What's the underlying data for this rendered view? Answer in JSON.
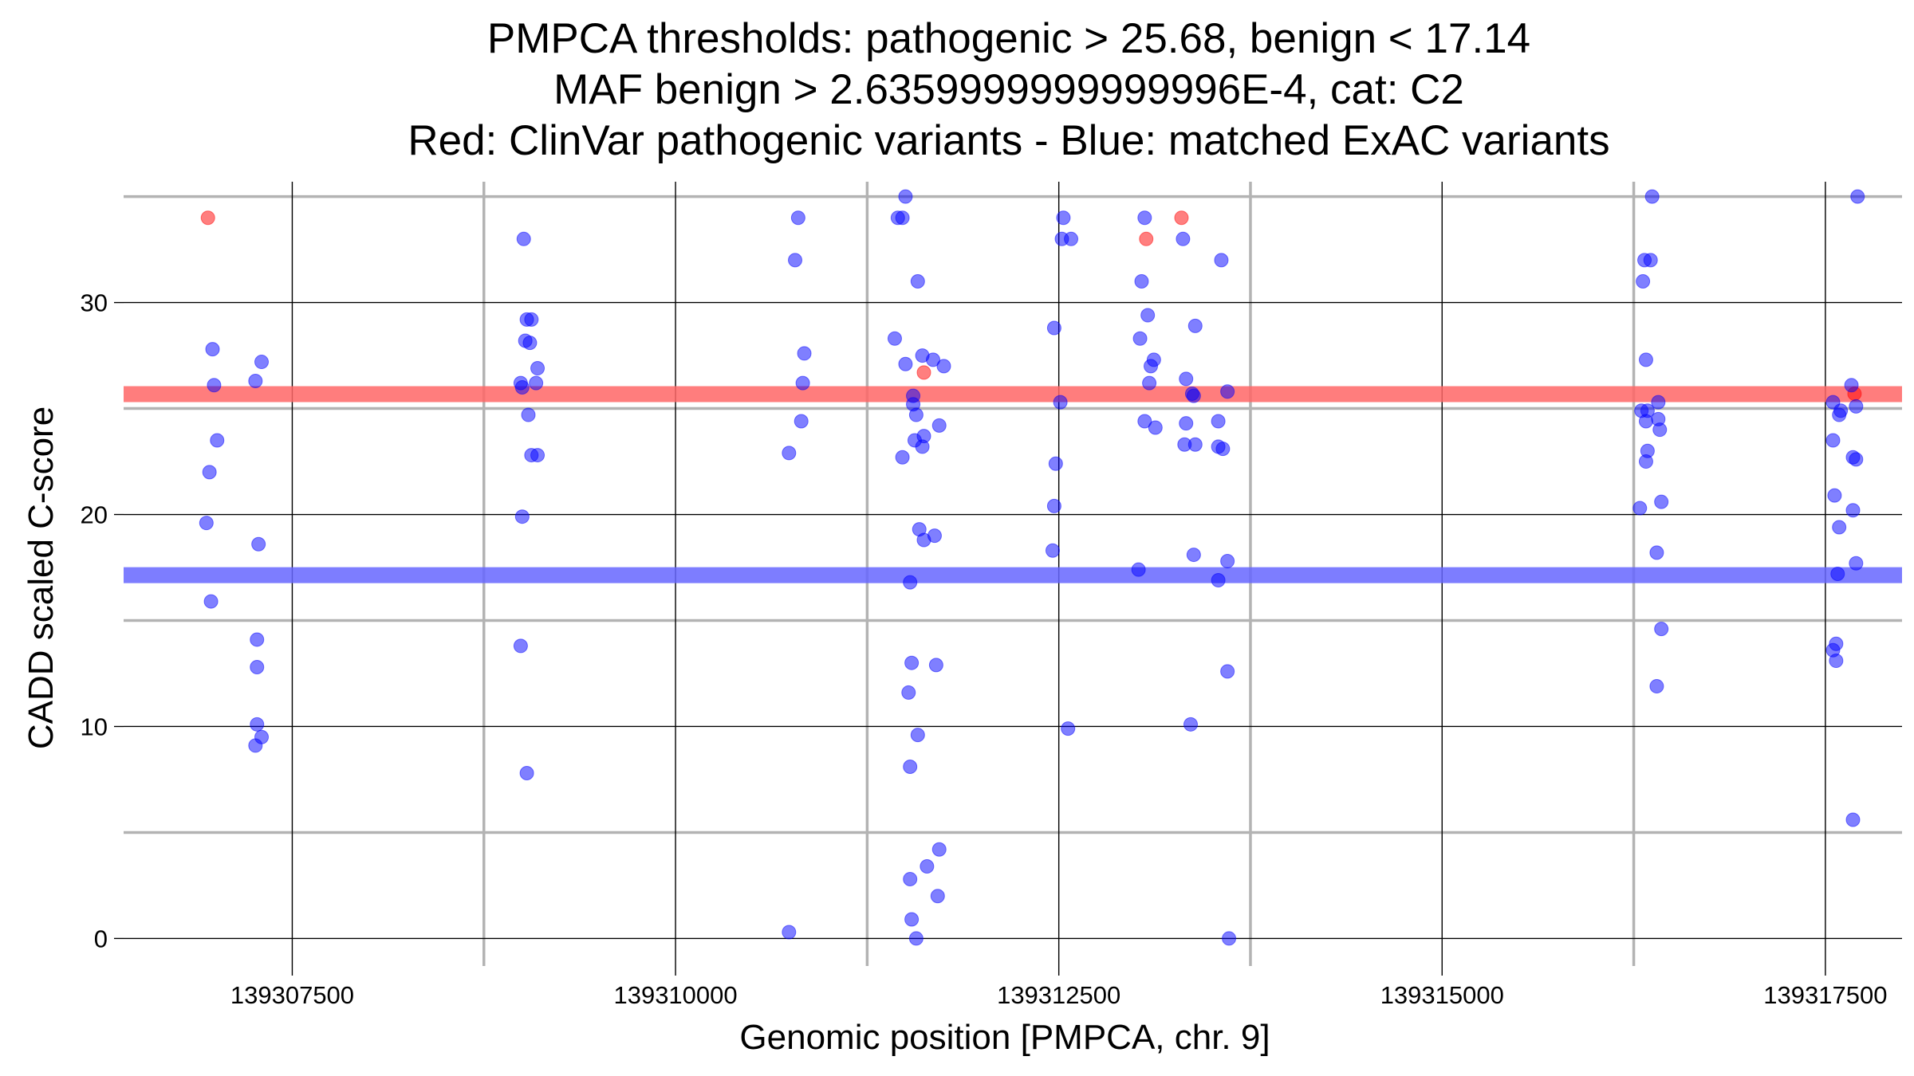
{
  "chart_data": {
    "type": "scatter",
    "title_lines": [
      "PMPCA thresholds: pathogenic > 25.68, benign < 17.14",
      "MAF benign > 2.6359999999999996E-4, cat: C2",
      "Red: ClinVar pathogenic variants - Blue: matched ExAC variants"
    ],
    "xlabel": "Genomic position [PMPCA, chr. 9]",
    "ylabel": "CADD scaled C-score",
    "xlim": [
      139306400,
      139318000
    ],
    "ylim": [
      -1.3,
      35.7
    ],
    "x_ticks": [
      139307500,
      139310000,
      139312500,
      139315000,
      139317500
    ],
    "x_tick_labels": [
      "139307500",
      "139310000",
      "139312500",
      "139315000",
      "139317500"
    ],
    "y_ticks": [
      0,
      10,
      20,
      30
    ],
    "y_tick_labels": [
      "0",
      "10",
      "20",
      "30"
    ],
    "grid": true,
    "thresholds": [
      {
        "name": "pathogenic",
        "value": 25.68,
        "color": "#FF6666"
      },
      {
        "name": "benign",
        "value": 17.14,
        "color": "#6666FF"
      }
    ],
    "exon_boundaries": [
      139308750,
      139311250,
      139313750,
      139316250
    ],
    "series": [
      {
        "color": "#FF0000",
        "points": [
          {
            "x": 139306950,
            "y": 34.0
          },
          {
            "x": 139311620,
            "y": 26.7
          },
          {
            "x": 139313070,
            "y": 33.0
          },
          {
            "x": 139313300,
            "y": 34.0
          },
          {
            "x": 139317690,
            "y": 25.7
          }
        ]
      },
      {
        "color": "#0000FF",
        "points": [
          {
            "x": 139306980,
            "y": 27.8
          },
          {
            "x": 139306990,
            "y": 26.1
          },
          {
            "x": 139307010,
            "y": 23.5
          },
          {
            "x": 139306960,
            "y": 22.0
          },
          {
            "x": 139306940,
            "y": 19.6
          },
          {
            "x": 139306970,
            "y": 15.9
          },
          {
            "x": 139307260,
            "y": 26.3
          },
          {
            "x": 139307300,
            "y": 27.2
          },
          {
            "x": 139307280,
            "y": 18.6
          },
          {
            "x": 139307270,
            "y": 14.1
          },
          {
            "x": 139307270,
            "y": 12.8
          },
          {
            "x": 139307270,
            "y": 10.1
          },
          {
            "x": 139307260,
            "y": 9.1
          },
          {
            "x": 139307300,
            "y": 9.5
          },
          {
            "x": 139309010,
            "y": 33.0
          },
          {
            "x": 139309030,
            "y": 29.2
          },
          {
            "x": 139309060,
            "y": 29.2
          },
          {
            "x": 139309020,
            "y": 28.2
          },
          {
            "x": 139309050,
            "y": 28.1
          },
          {
            "x": 139309100,
            "y": 26.9
          },
          {
            "x": 139308990,
            "y": 26.2
          },
          {
            "x": 139309000,
            "y": 26.0
          },
          {
            "x": 139309090,
            "y": 26.2
          },
          {
            "x": 139309040,
            "y": 24.7
          },
          {
            "x": 139309060,
            "y": 22.8
          },
          {
            "x": 139309100,
            "y": 22.8
          },
          {
            "x": 139309000,
            "y": 19.9
          },
          {
            "x": 139308990,
            "y": 13.8
          },
          {
            "x": 139309030,
            "y": 7.8
          },
          {
            "x": 139310800,
            "y": 34.0
          },
          {
            "x": 139310780,
            "y": 32.0
          },
          {
            "x": 139310840,
            "y": 27.6
          },
          {
            "x": 139310830,
            "y": 26.2
          },
          {
            "x": 139310820,
            "y": 24.4
          },
          {
            "x": 139310740,
            "y": 22.9
          },
          {
            "x": 139310740,
            "y": 0.3
          },
          {
            "x": 139311500,
            "y": 35.0
          },
          {
            "x": 139311480,
            "y": 34.0
          },
          {
            "x": 139311450,
            "y": 34.0
          },
          {
            "x": 139311580,
            "y": 31.0
          },
          {
            "x": 139311430,
            "y": 28.3
          },
          {
            "x": 139311500,
            "y": 27.1
          },
          {
            "x": 139311610,
            "y": 27.5
          },
          {
            "x": 139311680,
            "y": 27.3
          },
          {
            "x": 139311750,
            "y": 27.0
          },
          {
            "x": 139311550,
            "y": 25.6
          },
          {
            "x": 139311550,
            "y": 25.2
          },
          {
            "x": 139311570,
            "y": 24.7
          },
          {
            "x": 139311720,
            "y": 24.2
          },
          {
            "x": 139311560,
            "y": 23.5
          },
          {
            "x": 139311620,
            "y": 23.7
          },
          {
            "x": 139311610,
            "y": 23.2
          },
          {
            "x": 139311480,
            "y": 22.7
          },
          {
            "x": 139311590,
            "y": 19.3
          },
          {
            "x": 139311620,
            "y": 18.8
          },
          {
            "x": 139311690,
            "y": 19.0
          },
          {
            "x": 139311530,
            "y": 16.8
          },
          {
            "x": 139311540,
            "y": 13.0
          },
          {
            "x": 139311700,
            "y": 12.9
          },
          {
            "x": 139311520,
            "y": 11.6
          },
          {
            "x": 139311580,
            "y": 9.6
          },
          {
            "x": 139311530,
            "y": 8.1
          },
          {
            "x": 139311720,
            "y": 4.2
          },
          {
            "x": 139311640,
            "y": 3.4
          },
          {
            "x": 139311530,
            "y": 2.8
          },
          {
            "x": 139311710,
            "y": 2.0
          },
          {
            "x": 139311540,
            "y": 0.9
          },
          {
            "x": 139311570,
            "y": 0.0
          },
          {
            "x": 139312530,
            "y": 34.0
          },
          {
            "x": 139312520,
            "y": 33.0
          },
          {
            "x": 139312580,
            "y": 33.0
          },
          {
            "x": 139312470,
            "y": 28.8
          },
          {
            "x": 139312510,
            "y": 25.3
          },
          {
            "x": 139312480,
            "y": 22.4
          },
          {
            "x": 139312470,
            "y": 20.4
          },
          {
            "x": 139312460,
            "y": 18.3
          },
          {
            "x": 139312560,
            "y": 9.9
          },
          {
            "x": 139313060,
            "y": 34.0
          },
          {
            "x": 139313040,
            "y": 31.0
          },
          {
            "x": 139313080,
            "y": 29.4
          },
          {
            "x": 139313030,
            "y": 28.3
          },
          {
            "x": 139313120,
            "y": 27.3
          },
          {
            "x": 139313100,
            "y": 27.0
          },
          {
            "x": 139313090,
            "y": 26.2
          },
          {
            "x": 139313060,
            "y": 24.4
          },
          {
            "x": 139313130,
            "y": 24.1
          },
          {
            "x": 139313020,
            "y": 17.4
          },
          {
            "x": 139313310,
            "y": 33.0
          },
          {
            "x": 139313330,
            "y": 26.4
          },
          {
            "x": 139313370,
            "y": 25.7
          },
          {
            "x": 139313380,
            "y": 25.6
          },
          {
            "x": 139313390,
            "y": 28.9
          },
          {
            "x": 139313330,
            "y": 24.3
          },
          {
            "x": 139313320,
            "y": 23.3
          },
          {
            "x": 139313390,
            "y": 23.3
          },
          {
            "x": 139313380,
            "y": 18.1
          },
          {
            "x": 139313360,
            "y": 10.1
          },
          {
            "x": 139313560,
            "y": 32.0
          },
          {
            "x": 139313540,
            "y": 24.4
          },
          {
            "x": 139313540,
            "y": 23.2
          },
          {
            "x": 139313570,
            "y": 23.1
          },
          {
            "x": 139313600,
            "y": 25.8
          },
          {
            "x": 139313600,
            "y": 17.8
          },
          {
            "x": 139313540,
            "y": 16.9
          },
          {
            "x": 139313600,
            "y": 12.6
          },
          {
            "x": 139313610,
            "y": 0.0
          },
          {
            "x": 139316370,
            "y": 35.0
          },
          {
            "x": 139316320,
            "y": 32.0
          },
          {
            "x": 139316360,
            "y": 32.0
          },
          {
            "x": 139316310,
            "y": 31.0
          },
          {
            "x": 139316330,
            "y": 27.3
          },
          {
            "x": 139316300,
            "y": 24.9
          },
          {
            "x": 139316340,
            "y": 24.9
          },
          {
            "x": 139316410,
            "y": 25.3
          },
          {
            "x": 139316330,
            "y": 24.4
          },
          {
            "x": 139316410,
            "y": 24.5
          },
          {
            "x": 139316420,
            "y": 24.0
          },
          {
            "x": 139316340,
            "y": 23.0
          },
          {
            "x": 139316330,
            "y": 22.5
          },
          {
            "x": 139316290,
            "y": 20.3
          },
          {
            "x": 139316430,
            "y": 20.6
          },
          {
            "x": 139316400,
            "y": 18.2
          },
          {
            "x": 139316430,
            "y": 14.6
          },
          {
            "x": 139316400,
            "y": 11.9
          },
          {
            "x": 139317710,
            "y": 35.0
          },
          {
            "x": 139317670,
            "y": 26.1
          },
          {
            "x": 139317550,
            "y": 25.3
          },
          {
            "x": 139317600,
            "y": 24.9
          },
          {
            "x": 139317590,
            "y": 24.7
          },
          {
            "x": 139317700,
            "y": 25.1
          },
          {
            "x": 139317550,
            "y": 23.5
          },
          {
            "x": 139317680,
            "y": 22.7
          },
          {
            "x": 139317700,
            "y": 22.6
          },
          {
            "x": 139317560,
            "y": 20.9
          },
          {
            "x": 139317680,
            "y": 20.2
          },
          {
            "x": 139317590,
            "y": 19.4
          },
          {
            "x": 139317700,
            "y": 17.7
          },
          {
            "x": 139317580,
            "y": 17.2
          },
          {
            "x": 139317570,
            "y": 13.9
          },
          {
            "x": 139317550,
            "y": 13.6
          },
          {
            "x": 139317570,
            "y": 13.1
          },
          {
            "x": 139317680,
            "y": 5.6
          }
        ]
      }
    ]
  }
}
